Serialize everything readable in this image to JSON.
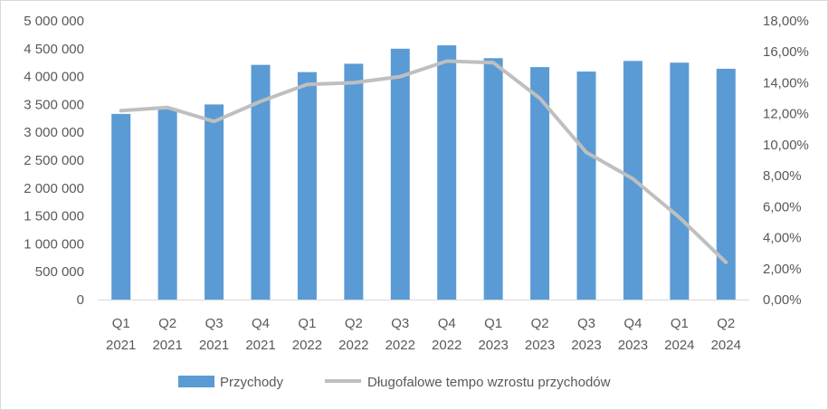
{
  "chart_data": {
    "type": "bar+line",
    "categories": [
      [
        "Q1",
        "2021"
      ],
      [
        "Q2",
        "2021"
      ],
      [
        "Q3",
        "2021"
      ],
      [
        "Q4",
        "2021"
      ],
      [
        "Q1",
        "2022"
      ],
      [
        "Q2",
        "2022"
      ],
      [
        "Q3",
        "2022"
      ],
      [
        "Q4",
        "2022"
      ],
      [
        "Q1",
        "2023"
      ],
      [
        "Q2",
        "2023"
      ],
      [
        "Q3",
        "2023"
      ],
      [
        "Q4",
        "2023"
      ],
      [
        "Q1",
        "2024"
      ],
      [
        "Q2",
        "2024"
      ]
    ],
    "series": [
      {
        "name": "Przychody",
        "kind": "bar",
        "axis": "left",
        "color": "#5b9bd5",
        "values": [
          3330000,
          3430000,
          3500000,
          4210000,
          4080000,
          4230000,
          4500000,
          4560000,
          4330000,
          4170000,
          4090000,
          4280000,
          4250000,
          4140000
        ]
      },
      {
        "name": "Długofalowe tempo wzrostu przychodów",
        "kind": "line",
        "axis": "right",
        "color": "#bfbfbf",
        "values": [
          0.122,
          0.124,
          0.115,
          0.128,
          0.139,
          0.14,
          0.144,
          0.154,
          0.153,
          0.13,
          0.095,
          0.078,
          0.053,
          0.024
        ]
      }
    ],
    "y_left": {
      "min": 0,
      "max": 5000000,
      "ticks": [
        "0",
        "500 000",
        "1 000 000",
        "1 500 000",
        "2 000 000",
        "2 500 000",
        "3 000 000",
        "3 500 000",
        "4 000 000",
        "4 500 000",
        "5 000 000"
      ]
    },
    "y_right": {
      "min": 0,
      "max": 0.18,
      "ticks": [
        "0,00%",
        "2,00%",
        "4,00%",
        "6,00%",
        "8,00%",
        "10,00%",
        "12,00%",
        "14,00%",
        "16,00%",
        "18,00%"
      ]
    },
    "grid": false,
    "legend_position": "bottom"
  }
}
